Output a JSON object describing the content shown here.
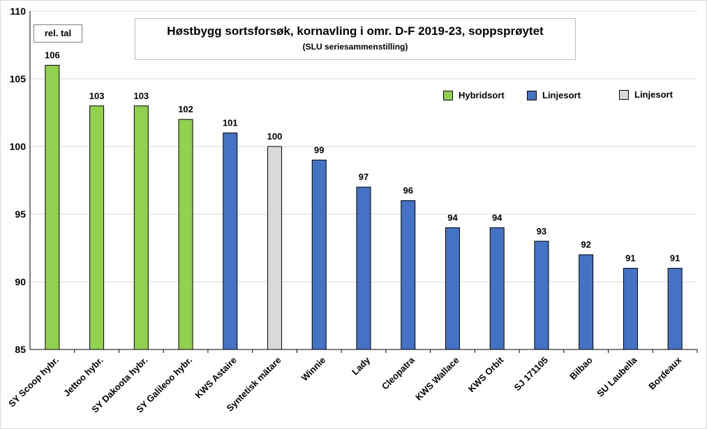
{
  "chart_data": {
    "type": "bar",
    "title": "Høstbygg sortsforsøk, kornavling i omr. D-F 2019-23, soppsprøytet",
    "subtitle": "(SLU seriesammenstilling)",
    "ylabel": "rel. tal",
    "xlabel": "",
    "ylim": [
      85,
      110
    ],
    "yticks": [
      85,
      90,
      95,
      100,
      105,
      110
    ],
    "grid": true,
    "legend_position": "top-right",
    "categories": [
      "SY Scoop hybr.",
      "Jettoo hybr.",
      "SY Dakoota hybr.",
      "SY Galileoo hybr.",
      "KWS Astaire",
      "Syntetisk mätare",
      "Winnie",
      "Lady",
      "Cleopatra",
      "KWS Wallace",
      "KWS Orbit",
      "SJ 171105",
      "Bilbao",
      "SU Laubella",
      "Bordeaux"
    ],
    "values": [
      106,
      103,
      103,
      102,
      101,
      100,
      99,
      97,
      96,
      94,
      94,
      93,
      92,
      91,
      91
    ],
    "value_labels": [
      "106",
      "103",
      "103",
      "102",
      "101",
      "100",
      "99",
      "97",
      "96",
      "94",
      "94",
      "93",
      "92",
      "91",
      "91"
    ],
    "bar_groups": [
      "hybrid",
      "hybrid",
      "hybrid",
      "hybrid",
      "line",
      "reference",
      "line",
      "line",
      "line",
      "line",
      "line",
      "line",
      "line",
      "line",
      "line"
    ],
    "colors": {
      "hybrid": "#92d050",
      "line": "#4472c4",
      "reference": "#d9d9d9"
    },
    "legend": [
      {
        "label": "Hybridsort",
        "group": "hybrid"
      },
      {
        "label": "Linjesort",
        "group": "line"
      },
      {
        "label": "Linjesort",
        "group": "reference"
      }
    ]
  }
}
